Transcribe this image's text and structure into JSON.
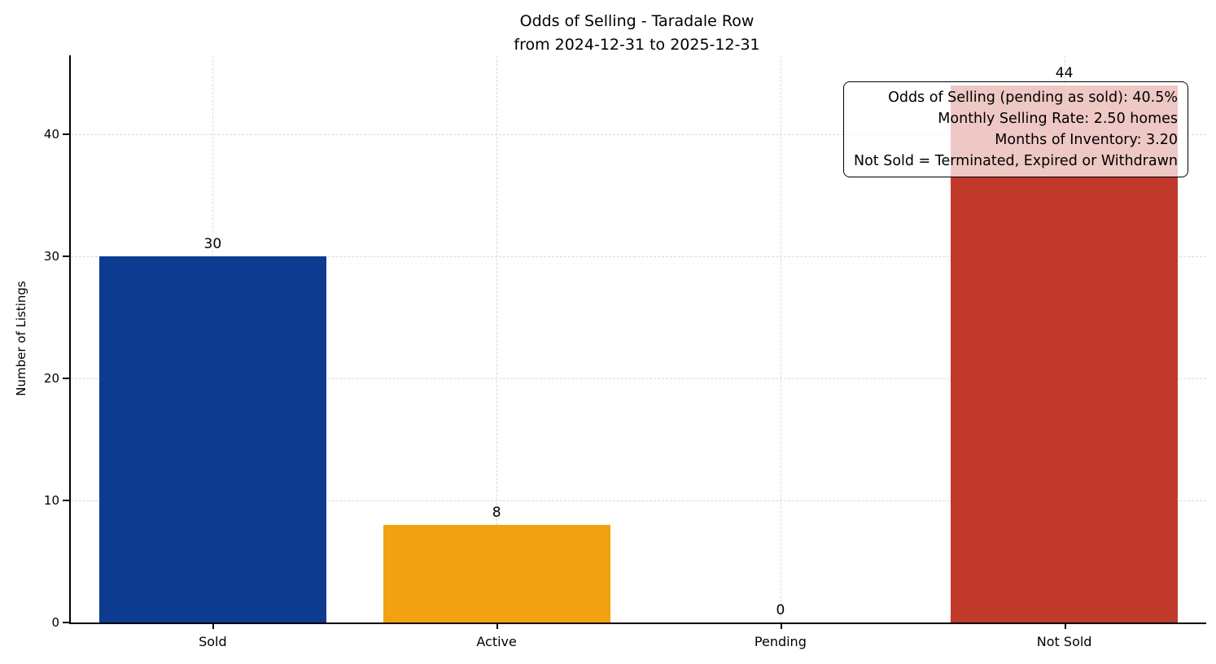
{
  "title": {
    "line1": "Odds of Selling - Taradale Row",
    "line2": "from 2024-12-31 to 2025-12-31"
  },
  "chart_data": {
    "type": "bar",
    "title": "Odds of Selling - Taradale Row\nfrom 2024-12-31 to 2025-12-31",
    "categories": [
      "Sold",
      "Active",
      "Pending",
      "Not Sold"
    ],
    "values": [
      30,
      8,
      0,
      44
    ],
    "bar_colors": [
      "#0d3b8f",
      "#f2a211",
      "#2ca02c",
      "#c0392b"
    ],
    "xlabel": "",
    "ylabel": "Number of Listings",
    "ylim": [
      0,
      46.5
    ],
    "yticks": [
      0,
      10,
      20,
      30,
      40
    ],
    "grid": "dashed",
    "legend": "none",
    "annotation": {
      "position": "top-right",
      "lines": [
        "Odds of Selling (pending as sold): 40.5%",
        "Monthly Selling Rate: 2.50 homes",
        "Months of Inventory: 3.20",
        "Not Sold = Terminated, Expired or Withdrawn"
      ]
    }
  }
}
